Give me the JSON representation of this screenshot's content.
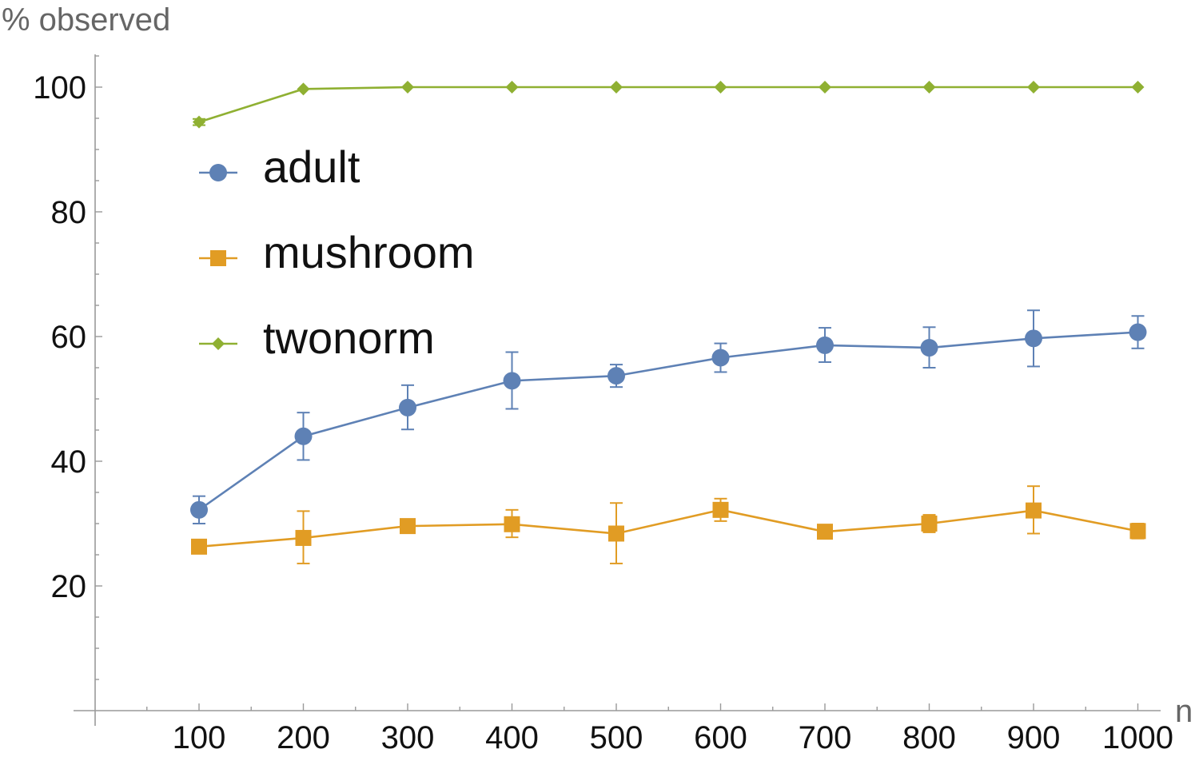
{
  "chart_data": {
    "type": "line",
    "xlabel": "n",
    "ylabel": "% observed",
    "x": [
      100,
      200,
      300,
      400,
      500,
      600,
      700,
      800,
      900,
      1000
    ],
    "xticks": [
      "100",
      "200",
      "300",
      "400",
      "500",
      "600",
      "700",
      "800",
      "900",
      "1000"
    ],
    "yticks": [
      "20",
      "40",
      "60",
      "80",
      "100"
    ],
    "ytick_values": [
      20,
      40,
      60,
      80,
      100
    ],
    "xlim": [
      0,
      1050
    ],
    "ylim": [
      0,
      105
    ],
    "grid": false,
    "legend_position": "upper-left",
    "series": [
      {
        "name": "adult",
        "color": "#5e81b5",
        "marker": "circle",
        "values": [
          32.2,
          44.0,
          48.6,
          52.9,
          53.7,
          56.6,
          58.6,
          58.2,
          59.7,
          60.7
        ],
        "err_low": [
          30.0,
          40.2,
          45.1,
          48.4,
          51.9,
          54.3,
          55.9,
          55.0,
          55.2,
          58.1
        ],
        "err_high": [
          34.4,
          47.8,
          52.2,
          57.5,
          55.5,
          58.9,
          61.4,
          61.5,
          64.2,
          63.3
        ]
      },
      {
        "name": "mushroom",
        "color": "#e19c24",
        "marker": "square",
        "values": [
          26.3,
          27.7,
          29.6,
          29.9,
          28.4,
          32.2,
          28.7,
          30.0,
          32.1,
          28.8
        ],
        "err_low": [
          25.6,
          23.6,
          28.9,
          27.8,
          23.6,
          30.4,
          28.0,
          28.6,
          28.4,
          27.6
        ],
        "err_high": [
          27.0,
          32.0,
          30.3,
          32.2,
          33.3,
          34.0,
          29.4,
          31.4,
          36.0,
          30.0
        ]
      },
      {
        "name": "twonorm",
        "color": "#8fb032",
        "marker": "diamond",
        "values": [
          94.4,
          99.7,
          100,
          100,
          100,
          100,
          100,
          100,
          100,
          100
        ],
        "err_low": [
          93.9,
          99.6,
          100,
          100,
          100,
          100,
          100,
          100,
          100,
          100
        ],
        "err_high": [
          94.9,
          99.8,
          100,
          100,
          100,
          100,
          100,
          100,
          100,
          100
        ]
      }
    ]
  }
}
